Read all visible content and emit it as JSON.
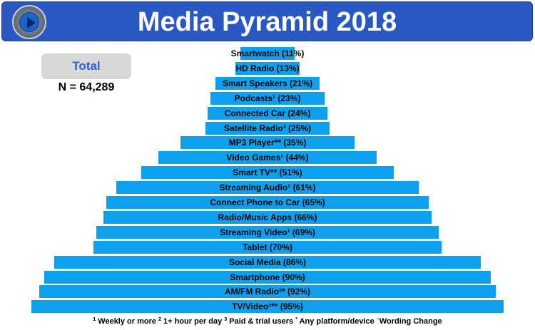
{
  "title": "Media Pyramid 2018",
  "total_label": "Total",
  "n_label": "N = 64,289",
  "colors": {
    "header": "#2a58c2",
    "bar": "#0da0ee",
    "total_text": "#2a62d6"
  },
  "footnote": {
    "n1": "1",
    "t1": " Weekly or more  ",
    "n2": "2",
    "t2": " 1+ hour per day  ",
    "n3": "3",
    "t3": " Paid & trial users  ",
    "n4": "*",
    "t4": " Any platform/device ",
    "n5": "~",
    "t5": "Wording Change"
  },
  "chart_data": {
    "type": "bar",
    "title": "Media Pyramid 2018",
    "orientation": "horizontal-centered",
    "categories": [
      "Smartwatch",
      "HD Radio",
      "Smart Speakers",
      "Podcasts",
      "Connected Car",
      "Satellite Radio",
      "MP3 Player",
      "Video Games",
      "Smart TV",
      "Streaming Audio",
      "Connect Phone to Car",
      "Radio/Music Apps",
      "Streaming Video",
      "Tablet",
      "Social Media",
      "Smartphone",
      "AM/FM Radio",
      "TV/Video"
    ],
    "values": [
      11,
      13,
      21,
      23,
      24,
      25,
      35,
      44,
      51,
      61,
      65,
      66,
      69,
      70,
      86,
      90,
      92,
      95
    ],
    "labels": [
      "Smartwatch (11%)",
      "HD Radio (13%)",
      "Smart Speakers (21%)",
      "Podcasts¹ (23%)",
      "Connected Car (24%)",
      "Satellite Radio³ (25%)",
      "MP3 Player** (35%)",
      "Video Games¹ (44%)",
      "Smart TV** (51%)",
      "Streaming Audio¹ (61%)",
      "Connect Phone to Car (65%)",
      "Radio/Music Apps (66%)",
      "Streaming Video¹ (69%)",
      "Tablet (70%)",
      "Social Media (86%)",
      "Smartphone (90%)",
      "AM/FM Radio²* (92%)",
      "TV/Video²** (95%)"
    ],
    "unit": "%",
    "xlim": [
      0,
      100
    ]
  }
}
